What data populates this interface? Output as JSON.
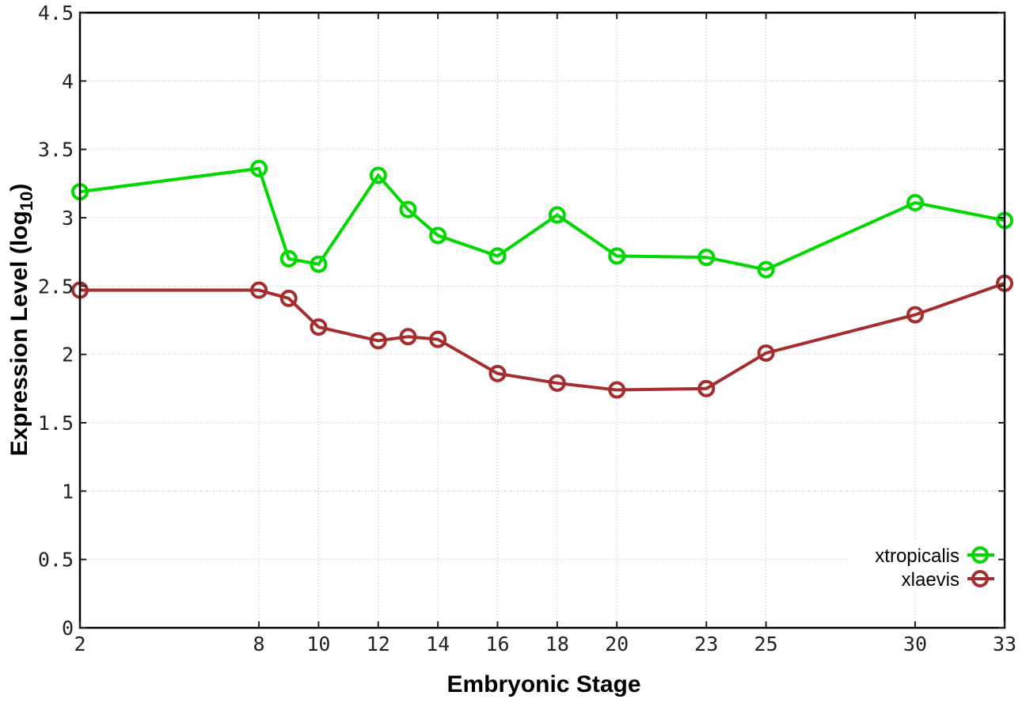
{
  "page": {
    "background_color": "#ffffff"
  },
  "chart_data": {
    "type": "line",
    "title": "",
    "xlabel": "Embryonic Stage",
    "ylabel": {
      "main": "Expression Level (log",
      "sub": "10",
      "close": ")"
    },
    "xlim": [
      2,
      33
    ],
    "ylim": [
      0,
      4.5
    ],
    "grid": true,
    "legend_position": "bottom-right-inside",
    "axis_color": "#000000",
    "grid_color": "#b5b5b5",
    "xticks": {
      "values": [
        2,
        8,
        10,
        12,
        14,
        16,
        18,
        20,
        23,
        25,
        30,
        33
      ],
      "labels": [
        "2",
        "8",
        "10",
        "12",
        "14",
        "16",
        "18",
        "20",
        "23",
        "25",
        "30",
        "33"
      ]
    },
    "yticks": {
      "values": [
        0,
        0.5,
        1,
        1.5,
        2,
        2.5,
        3,
        3.5,
        4,
        4.5
      ],
      "labels": [
        "0",
        "0.5",
        "1",
        "1.5",
        "2",
        "2.5",
        "3",
        "3.5",
        "4",
        "4.5"
      ]
    },
    "x": [
      2,
      8,
      9,
      10,
      12,
      13,
      14,
      16,
      18,
      20,
      23,
      25,
      30,
      33
    ],
    "series": [
      {
        "name": "xtropicalis",
        "color": "#00d800",
        "marker": "open-circle",
        "values": [
          3.19,
          3.36,
          2.7,
          2.66,
          3.31,
          3.06,
          2.87,
          2.72,
          3.02,
          2.72,
          2.71,
          2.62,
          3.11,
          2.98
        ]
      },
      {
        "name": "xlaevis",
        "color": "#a52d2d",
        "marker": "open-circle",
        "values": [
          2.47,
          2.47,
          2.41,
          2.2,
          2.1,
          2.13,
          2.11,
          1.86,
          1.79,
          1.74,
          1.75,
          2.01,
          2.29,
          2.52
        ]
      }
    ]
  }
}
